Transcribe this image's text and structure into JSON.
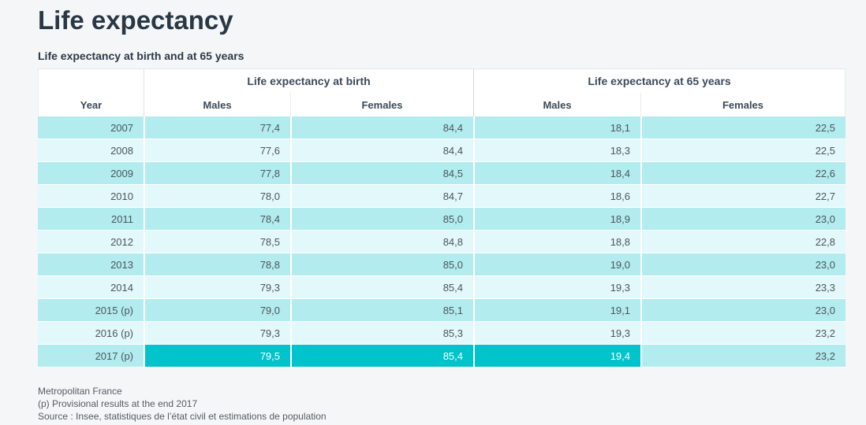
{
  "chart_data": {
    "type": "table",
    "title": "Life expectancy",
    "subtitle": "Life expectancy at birth and at 65 years",
    "year_header": "Year",
    "column_groups": [
      "Life expectancy at birth",
      "Life expectancy at 65 years"
    ],
    "sub_headers": [
      "Males",
      "Females",
      "Males",
      "Females"
    ],
    "rows": [
      {
        "year": "2007",
        "values": [
          "77,4",
          "84,4",
          "18,1",
          "22,5"
        ]
      },
      {
        "year": "2008",
        "values": [
          "77,6",
          "84,4",
          "18,3",
          "22,5"
        ]
      },
      {
        "year": "2009",
        "values": [
          "77,8",
          "84,5",
          "18,4",
          "22,6"
        ]
      },
      {
        "year": "2010",
        "values": [
          "78,0",
          "84,7",
          "18,6",
          "22,7"
        ]
      },
      {
        "year": "2011",
        "values": [
          "78,4",
          "85,0",
          "18,9",
          "23,0"
        ]
      },
      {
        "year": "2012",
        "values": [
          "78,5",
          "84,8",
          "18,8",
          "22,8"
        ]
      },
      {
        "year": "2013",
        "values": [
          "78,8",
          "85,0",
          "19,0",
          "23,0"
        ]
      },
      {
        "year": "2014",
        "values": [
          "79,3",
          "85,4",
          "19,3",
          "23,3"
        ]
      },
      {
        "year": "2015 (p)",
        "values": [
          "79,0",
          "85,1",
          "19,1",
          "23,0"
        ]
      },
      {
        "year": "2016 (p)",
        "values": [
          "79,3",
          "85,3",
          "19,3",
          "23,2"
        ]
      },
      {
        "year": "2017 (p)",
        "values": [
          "79,5",
          "85,4",
          "19,4",
          "23,2"
        ],
        "highlight_values": [
          true,
          true,
          true,
          false
        ]
      }
    ],
    "notes": [
      "Metropolitan France",
      "(p) Provisional results at the end 2017",
      "Source : Insee, statistiques de l’état civil et estimations de population"
    ],
    "layout": {
      "grid": "off",
      "legend": "none"
    }
  },
  "colors": {
    "highlight_cell": "#00c3cb",
    "row_odd": "#b2ecee",
    "row_even": "#e3f8fa",
    "header_background": "#ffffff",
    "page_background": "#f4f6f8",
    "title_text": "#2a3845",
    "cell_text": "#4d555c",
    "note_text": "#565c61"
  }
}
